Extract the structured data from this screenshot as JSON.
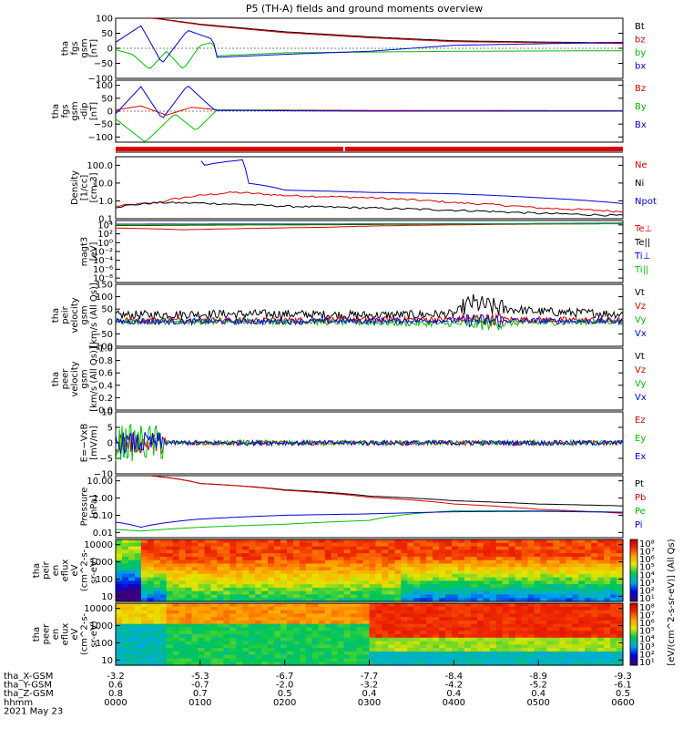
{
  "title": "P5 (TH-A) fields and ground moments overview",
  "panels": [
    {
      "id": "fgs",
      "ylabel": [
        "tha",
        "fgs",
        "gsm",
        "[nT]"
      ],
      "ticks": [
        {
          "v": 100,
          "l": "100"
        },
        {
          "v": 50,
          "l": "50"
        },
        {
          "v": 0,
          "l": "0"
        },
        {
          "v": -50,
          "l": "−50"
        },
        {
          "v": -100,
          "l": "−100"
        }
      ],
      "legend": [
        {
          "text": "Bt",
          "color": "#000000"
        },
        {
          "text": "bz",
          "color": "#e00000"
        },
        {
          "text": "by",
          "color": "#00c000"
        },
        {
          "text": "bx",
          "color": "#0000e0"
        }
      ]
    },
    {
      "id": "fgs_dip",
      "ylabel": [
        "tha",
        "fgs",
        "gsm",
        "-dip",
        "[nT]"
      ],
      "ticks": [
        {
          "v": 100,
          "l": "100"
        },
        {
          "v": 50,
          "l": "50"
        },
        {
          "v": 0,
          "l": "0"
        },
        {
          "v": -50,
          "l": "−50"
        },
        {
          "v": -100,
          "l": "−100"
        }
      ],
      "legend": [
        {
          "text": "Bz",
          "color": "#e00000"
        },
        {
          "text": "By",
          "color": "#00c000"
        },
        {
          "text": "Bx",
          "color": "#0000e0"
        }
      ]
    },
    {
      "id": "density",
      "ylabel": [
        "Density",
        "[1/cc]",
        "[cm-3]"
      ],
      "ticks": [
        {
          "v": 100,
          "l": "100.0"
        },
        {
          "v": 10,
          "l": "10.0"
        },
        {
          "v": 1,
          "l": "1.0"
        },
        {
          "v": 0.1,
          "l": "0.1"
        }
      ],
      "legend": [
        {
          "text": "Ne",
          "color": "#e00000"
        },
        {
          "text": "Ni",
          "color": "#000000"
        },
        {
          "text": "Npot",
          "color": "#0000e0"
        }
      ]
    },
    {
      "id": "temp",
      "ylabel": [
        "magt3",
        "[eV]"
      ],
      "ticks": [
        {
          "v": 10000.0,
          "l": "10⁴"
        },
        {
          "v": 100,
          "l": "10²"
        },
        {
          "v": 1,
          "l": "10⁰"
        },
        {
          "v": 0.01,
          "l": "10⁻²"
        },
        {
          "v": 0.0001,
          "l": "10⁻⁴"
        },
        {
          "v": 1e-06,
          "l": "10⁻⁶"
        },
        {
          "v": 1e-08,
          "l": "10⁻⁸"
        }
      ],
      "legend": [
        {
          "text": "Te⊥",
          "color": "#e00000"
        },
        {
          "text": "Te||",
          "color": "#000000"
        },
        {
          "text": "Ti⊥",
          "color": "#0000e0"
        },
        {
          "text": "Ti||",
          "color": "#00c000"
        }
      ]
    },
    {
      "id": "peir_vel",
      "ylabel": [
        "tha",
        "peir",
        "velocity",
        "gsm",
        "[km/s (All Qs)]"
      ],
      "ticks": [
        {
          "v": 150,
          "l": "150"
        },
        {
          "v": 100,
          "l": "100"
        },
        {
          "v": 50,
          "l": "50"
        },
        {
          "v": 0,
          "l": "0"
        },
        {
          "v": -50,
          "l": "−50"
        },
        {
          "v": -100,
          "l": "−100"
        }
      ],
      "legend": [
        {
          "text": "Vt",
          "color": "#000000"
        },
        {
          "text": "Vz",
          "color": "#e00000"
        },
        {
          "text": "Vy",
          "color": "#00c000"
        },
        {
          "text": "Vx",
          "color": "#0000e0"
        }
      ]
    },
    {
      "id": "peer_vel",
      "ylabel": [
        "tha",
        "peer",
        "velocity",
        "gsm",
        "[km/s (All Qs)]"
      ],
      "ticks": [
        {
          "v": 1.0,
          "l": "1.0"
        },
        {
          "v": 0.8,
          "l": "0.8"
        },
        {
          "v": 0.6,
          "l": "0.6"
        },
        {
          "v": 0.4,
          "l": "0.4"
        },
        {
          "v": 0.2,
          "l": "0.2"
        },
        {
          "v": 0.0,
          "l": "0.0"
        }
      ],
      "legend": [
        {
          "text": "Vt",
          "color": "#000000"
        },
        {
          "text": "Vz",
          "color": "#e00000"
        },
        {
          "text": "Vy",
          "color": "#00c000"
        },
        {
          "text": "Vx",
          "color": "#0000e0"
        }
      ]
    },
    {
      "id": "efield",
      "ylabel": [
        "E=−VxB",
        "[mV/m]"
      ],
      "ticks": [
        {
          "v": 10,
          "l": "10"
        },
        {
          "v": 5,
          "l": "5"
        },
        {
          "v": 0,
          "l": "0"
        },
        {
          "v": -5,
          "l": "−5"
        },
        {
          "v": -10,
          "l": "−10"
        }
      ],
      "legend": [
        {
          "text": "Ez",
          "color": "#e00000"
        },
        {
          "text": "Ey",
          "color": "#00c000"
        },
        {
          "text": "Ex",
          "color": "#0000e0"
        }
      ]
    },
    {
      "id": "pressure",
      "ylabel": [
        "Pressure",
        "[nPa]"
      ],
      "ticks": [
        {
          "v": 10,
          "l": "10.00"
        },
        {
          "v": 1,
          "l": "1.00"
        },
        {
          "v": 0.1,
          "l": "0.10"
        },
        {
          "v": 0.01,
          "l": "0.01"
        }
      ],
      "legend": [
        {
          "text": "Pt",
          "color": "#000000"
        },
        {
          "text": "Pb",
          "color": "#e00000"
        },
        {
          "text": "Pe",
          "color": "#00c000"
        },
        {
          "text": "Pi",
          "color": "#0000e0"
        }
      ]
    },
    {
      "id": "peir_en",
      "ylabel": [
        "tha",
        "peir",
        "en",
        "eflux",
        "eV",
        "(cm^2-s-",
        "sr-eV)"
      ],
      "ticks": [
        {
          "v": 10000,
          "l": "10000"
        },
        {
          "v": 1000,
          "l": "1000"
        },
        {
          "v": 100,
          "l": "100"
        },
        {
          "v": 10,
          "l": "10"
        }
      ],
      "legend": []
    },
    {
      "id": "peer_en",
      "ylabel": [
        "tha",
        "peer",
        "en",
        "eflux",
        "eV",
        "(cm^2-s-",
        "sr-eV)"
      ],
      "ticks": [
        {
          "v": 10000,
          "l": "10000"
        },
        {
          "v": 1000,
          "l": "1000"
        },
        {
          "v": 100,
          "l": "100"
        },
        {
          "v": 10,
          "l": "10"
        }
      ],
      "legend": []
    }
  ],
  "colorbar": {
    "top_ticks": [
      "10⁸",
      "10⁷",
      "10⁶",
      "10⁵",
      "10⁴",
      "10³",
      "10²",
      "10¹"
    ],
    "bottom_ticks": [
      "10⁸",
      "10⁷",
      "10⁶",
      "10⁵",
      "10⁴",
      "10³",
      "10²",
      "10¹"
    ],
    "label": "[eV/(cm^2-s-sr-eV)] (All Qs)"
  },
  "x_axis": {
    "row_labels": [
      "tha_X-GSM",
      "tha_Y-GSM",
      "tha_Z-GSM",
      "hhmm",
      "2021 May 23"
    ],
    "ticks": [
      {
        "x": "-3.2",
        "y": "0.6",
        "z": "0.8",
        "t": "0000"
      },
      {
        "x": "-5.3",
        "y": "-0.7",
        "z": "0.7",
        "t": "0100"
      },
      {
        "x": "-6.7",
        "y": "-2.0",
        "z": "0.5",
        "t": "0200"
      },
      {
        "x": "-7.7",
        "y": "-3.2",
        "z": "0.4",
        "t": "0300"
      },
      {
        "x": "-8.4",
        "y": "-4.2",
        "z": "0.4",
        "t": "0400"
      },
      {
        "x": "-8.9",
        "y": "-5.2",
        "z": "0.4",
        "t": "0500"
      },
      {
        "x": "-9.3",
        "y": "-6.1",
        "z": "0.5",
        "t": "0600"
      }
    ]
  },
  "chart_data": {
    "type": "line",
    "title": "P5 (TH-A) fields and ground moments overview",
    "x_unit": "hhmm",
    "x_range": [
      "0000",
      "0600"
    ],
    "panels": [
      {
        "id": "fgs",
        "ylim": [
          -100,
          100
        ],
        "series": [
          {
            "name": "Bt",
            "x": [
              0.4,
              0.5,
              1.0,
              2.0,
              3.0,
              4.0,
              5.0,
              6.0
            ],
            "y": [
              100,
              99,
              80,
              55,
              38,
              25,
              21,
              18
            ]
          },
          {
            "name": "bz",
            "x": [
              0.4,
              0.5,
              1.0,
              2.0,
              3.0,
              4.0,
              5.0,
              6.0
            ],
            "y": [
              100,
              98,
              78,
              52,
              35,
              22,
              19,
              16
            ]
          },
          {
            "name": "by",
            "x": [
              0.0,
              0.2,
              0.4,
              0.6,
              0.8,
              1.0,
              1.15,
              1.2,
              2.0,
              4.0,
              6.0
            ],
            "y": [
              -5,
              -20,
              -70,
              -10,
              -70,
              10,
              20,
              -25,
              -15,
              -10,
              -8
            ]
          },
          {
            "name": "bx",
            "x": [
              0.0,
              0.3,
              0.55,
              0.85,
              1.15,
              1.2,
              2.0,
              3.0,
              4.0,
              5.0,
              6.0
            ],
            "y": [
              20,
              75,
              -50,
              60,
              30,
              -30,
              -20,
              -10,
              10,
              15,
              20
            ]
          }
        ]
      },
      {
        "id": "fgs_dip",
        "ylim": [
          -120,
          120
        ],
        "series": [
          {
            "name": "Bz",
            "x": [
              0.0,
              0.3,
              0.6,
              0.9,
              1.2,
              3.0,
              6.0
            ],
            "y": [
              5,
              20,
              -15,
              15,
              5,
              3,
              2
            ]
          },
          {
            "name": "By",
            "x": [
              0.0,
              0.35,
              0.7,
              0.95,
              1.2,
              3.0,
              6.0
            ],
            "y": [
              -30,
              -120,
              -10,
              -75,
              5,
              0,
              1
            ]
          },
          {
            "name": "Bx",
            "x": [
              0.0,
              0.3,
              0.55,
              0.85,
              1.15,
              1.2,
              3.0,
              6.0
            ],
            "y": [
              -10,
              95,
              -30,
              100,
              10,
              3,
              0,
              0
            ]
          }
        ]
      },
      {
        "id": "density",
        "ylim": [
          0.1,
          300
        ],
        "scale": "log",
        "series": [
          {
            "name": "Ne",
            "x": [
              0.0,
              0.5,
              1.0,
              1.4,
              2.0,
              3.0,
              4.0,
              5.0,
              6.0
            ],
            "y": [
              0.5,
              0.8,
              2.0,
              3.0,
              2.0,
              1.5,
              0.8,
              0.4,
              0.25
            ]
          },
          {
            "name": "Ni",
            "x": [
              0.0,
              0.5,
              1.0,
              2.0,
              3.0,
              4.0,
              5.0,
              6.0
            ],
            "y": [
              0.45,
              0.8,
              0.75,
              0.5,
              0.4,
              0.3,
              0.2,
              0.15
            ]
          },
          {
            "name": "Npot",
            "x": [
              1.0,
              1.05,
              1.5,
              1.55,
              2.0,
              3.0,
              4.0,
              5.0,
              6.0
            ],
            "y": [
              200,
              100,
              200,
              10,
              4,
              3,
              2.5,
              1.5,
              0.7
            ]
          }
        ]
      },
      {
        "id": "temp",
        "ylim": [
          1e-09,
          100000.0
        ],
        "scale": "log",
        "series": [
          {
            "name": "Te⊥",
            "x": [
              0.0,
              0.8,
              1.5,
              2.5,
              3.5,
              6.0
            ],
            "y": [
              2000,
              800,
              1500,
              3000,
              8000,
              20000
            ]
          },
          {
            "name": "Te||",
            "x": [
              0.0,
              3.0,
              6.0
            ],
            "y": [
              8000,
              12000,
              25000
            ]
          },
          {
            "name": "Ti⊥",
            "x": [
              0.0,
              3.0,
              6.0
            ],
            "y": [
              15000,
              18000,
              20000
            ]
          },
          {
            "name": "Ti||",
            "x": [
              0.0,
              3.0,
              6.0
            ],
            "y": [
              12000,
              15000,
              18000
            ]
          }
        ]
      },
      {
        "id": "peir_vel",
        "ylim": [
          -100,
          150
        ],
        "series": [
          {
            "name": "Vt",
            "x": [
              0,
              1,
              2,
              3,
              4,
              4.2,
              4.5,
              5,
              6
            ],
            "y": [
              25,
              30,
              30,
              25,
              30,
              75,
              55,
              40,
              30
            ]
          },
          {
            "name": "Vz",
            "x": [
              0,
              2,
              4,
              6
            ],
            "y": [
              5,
              5,
              10,
              5
            ]
          },
          {
            "name": "Vy",
            "x": [
              0,
              2,
              4,
              6
            ],
            "y": [
              0,
              0,
              -10,
              0
            ]
          },
          {
            "name": "Vx",
            "x": [
              0,
              2,
              4,
              6
            ],
            "y": [
              0,
              0,
              5,
              0
            ]
          }
        ]
      },
      {
        "id": "peer_vel",
        "ylim": [
          0,
          1
        ],
        "series": []
      },
      {
        "id": "efield",
        "ylim": [
          -10,
          10
        ],
        "series": [
          {
            "name": "Ez",
            "x": [
              0,
              1,
              2,
              3,
              4,
              5,
              6
            ],
            "y": [
              0,
              0,
              0,
              0,
              0,
              0,
              0
            ]
          },
          {
            "name": "Ey",
            "x": [
              0,
              1,
              2,
              3,
              4,
              5,
              6
            ],
            "y": [
              0,
              0,
              0,
              0,
              0,
              0,
              0
            ]
          },
          {
            "name": "Ex",
            "x": [
              0,
              1,
              2,
              3,
              4,
              5,
              6
            ],
            "y": [
              0,
              0,
              0,
              0,
              0,
              0,
              0
            ]
          }
        ]
      },
      {
        "id": "pressure",
        "ylim": [
          0.005,
          20
        ],
        "scale": "log",
        "series": [
          {
            "name": "Pt",
            "x": [
              0.4,
              1.0,
              2.0,
              3.0,
              4.0,
              5.0,
              6.0
            ],
            "y": [
              20,
              7,
              3,
              1.3,
              0.7,
              0.45,
              0.35
            ]
          },
          {
            "name": "Pb",
            "x": [
              0.4,
              1.0,
              2.0,
              3.0,
              4.0,
              5.0,
              6.0
            ],
            "y": [
              20,
              7,
              2.8,
              1.1,
              0.45,
              0.22,
              0.13
            ]
          },
          {
            "name": "Pe",
            "x": [
              0.0,
              0.3,
              1.0,
              2.0,
              3.0,
              3.5,
              4.0,
              5.0,
              6.0
            ],
            "y": [
              0.015,
              0.012,
              0.02,
              0.03,
              0.05,
              0.12,
              0.18,
              0.18,
              0.15
            ]
          },
          {
            "name": "Pi",
            "x": [
              0.0,
              0.3,
              1.0,
              2.0,
              3.0,
              4.0,
              5.0,
              6.0
            ],
            "y": [
              0.04,
              0.02,
              0.06,
              0.1,
              0.12,
              0.16,
              0.17,
              0.15
            ]
          }
        ]
      }
    ]
  }
}
